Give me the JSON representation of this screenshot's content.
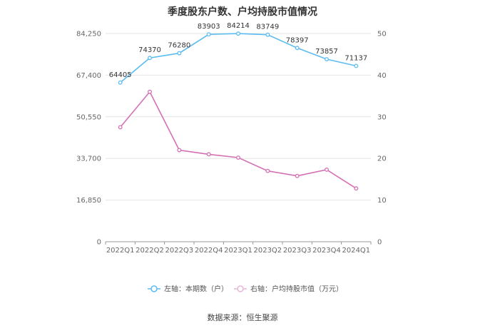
{
  "chart_data": {
    "type": "line",
    "title": "季度股东户数、户均持股市值情况",
    "categories": [
      "2022Q1",
      "2022Q2",
      "2022Q3",
      "2022Q4",
      "2023Q1",
      "2023Q2",
      "2023Q3",
      "2023Q4",
      "2024Q1"
    ],
    "left_axis": {
      "ylim": [
        0,
        84250
      ],
      "ticks": [
        "0",
        "16,850",
        "33,700",
        "50,550",
        "67,400",
        "84,250"
      ]
    },
    "right_axis": {
      "ylim": [
        0,
        50
      ],
      "ticks": [
        "0",
        "10",
        "20",
        "30",
        "40",
        "50"
      ]
    },
    "grid": true,
    "legend_position": "bottom",
    "series": [
      {
        "name": "左轴：本期数（户）",
        "axis": "left",
        "color": "#5bbcf0",
        "values": [
          64405,
          74370,
          76280,
          83903,
          84214,
          83749,
          78397,
          73857,
          71137
        ],
        "labels": [
          "64405",
          "74370",
          "76280",
          "83903",
          "84214",
          "83749",
          "78397",
          "73857",
          "71137"
        ]
      },
      {
        "name": "右轴：户均持股市值（万元）",
        "axis": "right",
        "color": "#d56fb4",
        "values": [
          27.5,
          36.0,
          22.0,
          21.0,
          20.2,
          17.0,
          15.8,
          17.3,
          12.8
        ]
      }
    ]
  },
  "source": "数据来源：恒生聚源"
}
